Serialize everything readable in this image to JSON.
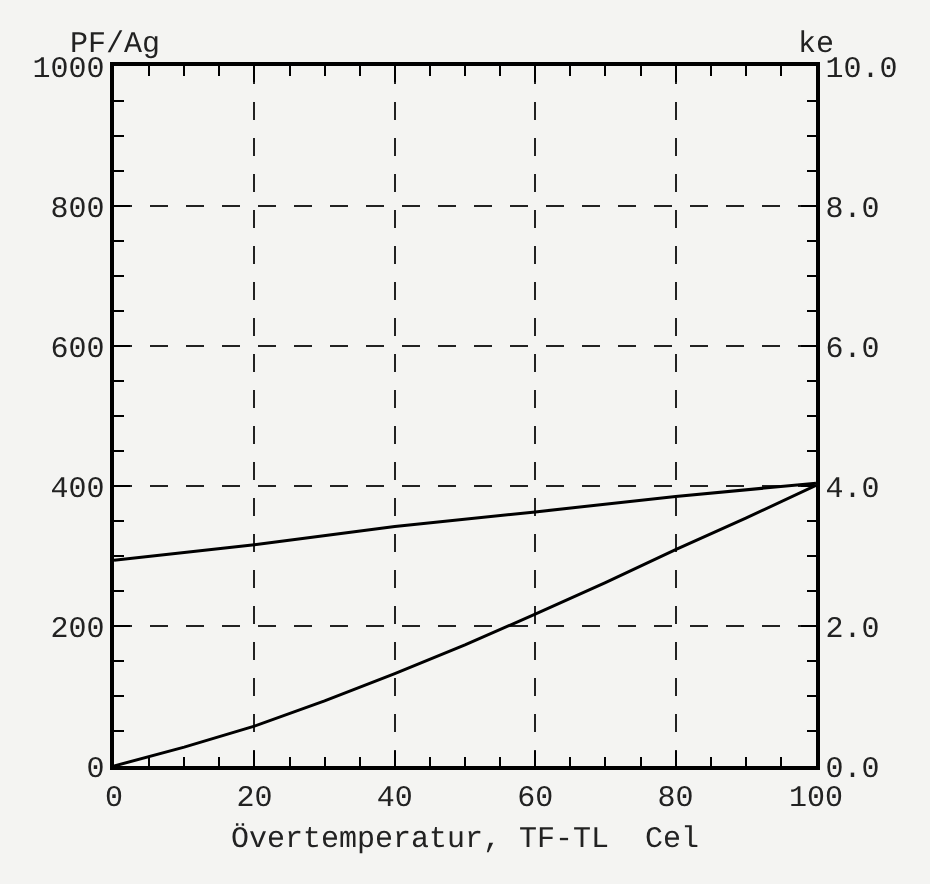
{
  "chart_data": {
    "type": "line",
    "xlabel": "Övertemperatur, TF-TL  Cel",
    "ylabel": "PF/Ag",
    "y2label": "ke",
    "xlim": [
      0,
      100
    ],
    "xticks": [
      0,
      20,
      40,
      60,
      80,
      100
    ],
    "ylim": [
      0,
      1000
    ],
    "yticks": [
      0,
      200,
      400,
      600,
      800,
      1000
    ],
    "y2lim": [
      0,
      10
    ],
    "y2ticks": [
      {
        "value": 0,
        "label": "0.0"
      },
      {
        "value": 2,
        "label": "2.0"
      },
      {
        "value": 4,
        "label": "4.0"
      },
      {
        "value": 6,
        "label": "6.0"
      },
      {
        "value": 8,
        "label": "8.0"
      },
      {
        "value": 10,
        "label": "10.0"
      }
    ],
    "grid": true,
    "legend": false,
    "marker": "none",
    "line_style": "solid",
    "series": [
      {
        "color": "#000000",
        "x": [
          0,
          20,
          40,
          60,
          80,
          100
        ],
        "values": [
          294,
          316,
          342,
          363,
          385,
          404
        ]
      },
      {
        "color": "#000000",
        "x": [
          0,
          10,
          20,
          30,
          40,
          50,
          60,
          70,
          80,
          90,
          100
        ],
        "values": [
          0,
          27,
          57,
          93,
          132,
          173,
          217,
          262,
          309,
          354,
          401
        ]
      }
    ]
  }
}
